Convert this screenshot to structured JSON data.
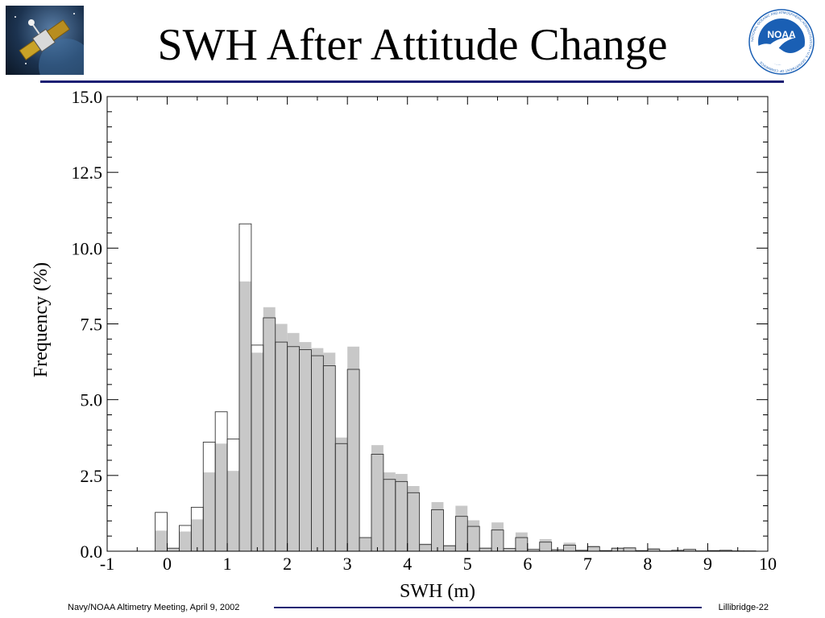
{
  "slide": {
    "title": "SWH After Attitude Change",
    "footer_left": "Navy/NOAA Altimetry Meeting, April 9, 2002",
    "footer_right": "Lillibridge-22",
    "logo_right_text": "NOAA",
    "logo_right_ring_text": "NATIONAL OCEANIC AND ATMOSPHERIC ADMINISTRATION • U.S. DEPARTMENT OF COMMERCE"
  },
  "colors": {
    "title_rule": "#1c1f73",
    "gray_bars": "#c8c8c8",
    "outline_bars": "#333333",
    "noaa_blue": "#1a5fb4"
  },
  "chart_data": {
    "type": "bar",
    "xlabel": "SWH (m)",
    "ylabel": "Frequency (%)",
    "xlim": [
      -1,
      10
    ],
    "ylim": [
      0,
      15
    ],
    "bin_width": 0.2,
    "x_ticks": [
      "-1",
      "0",
      "1",
      "2",
      "3",
      "4",
      "5",
      "6",
      "7",
      "8",
      "9",
      "10"
    ],
    "y_ticks": [
      "0.0",
      "2.5",
      "5.0",
      "7.5",
      "10.0",
      "12.5",
      "15.0"
    ],
    "x": [
      -0.1,
      0.1,
      0.3,
      0.5,
      0.7,
      0.9,
      1.1,
      1.3,
      1.5,
      1.7,
      1.9,
      2.1,
      2.3,
      2.5,
      2.7,
      2.9,
      3.1,
      3.3,
      3.5,
      3.7,
      3.9,
      4.1,
      4.3,
      4.5,
      4.7,
      4.9,
      5.1,
      5.3,
      5.5,
      5.7,
      5.9,
      6.1,
      6.3,
      6.5,
      6.7,
      6.9,
      7.1,
      7.3,
      7.5,
      7.7,
      7.9,
      8.1,
      8.3,
      8.5,
      8.7,
      8.9,
      9.1,
      9.3,
      9.5,
      9.7
    ],
    "series": [
      {
        "style": "filled-gray",
        "values": [
          0.68,
          0.1,
          0.65,
          1.05,
          2.6,
          3.55,
          2.65,
          8.9,
          6.55,
          8.05,
          7.5,
          7.2,
          6.9,
          6.7,
          6.55,
          3.75,
          6.75,
          0.45,
          3.5,
          2.6,
          2.55,
          2.15,
          0.25,
          1.62,
          0.2,
          1.5,
          1.02,
          0.12,
          0.95,
          0.1,
          0.62,
          0.07,
          0.4,
          0.05,
          0.28,
          0.04,
          0.18,
          0.03,
          0.12,
          0.13,
          0.03,
          0.1,
          0.02,
          0.04,
          0.07,
          0.02,
          0.03,
          0.04,
          0.02,
          0.01
        ]
      },
      {
        "style": "outline",
        "values": [
          1.28,
          0.1,
          0.85,
          1.45,
          3.6,
          4.6,
          3.7,
          10.8,
          6.8,
          7.7,
          6.9,
          6.75,
          6.65,
          6.45,
          6.12,
          3.55,
          6.0,
          0.45,
          3.2,
          2.37,
          2.3,
          1.93,
          0.22,
          1.37,
          0.18,
          1.15,
          0.82,
          0.1,
          0.7,
          0.09,
          0.45,
          0.06,
          0.3,
          0.05,
          0.2,
          0.03,
          0.15,
          0.02,
          0.1,
          0.11,
          0.02,
          0.07,
          0.01,
          0.03,
          0.06,
          0.01,
          0.02,
          0.03,
          0.01,
          0.01
        ]
      }
    ]
  }
}
